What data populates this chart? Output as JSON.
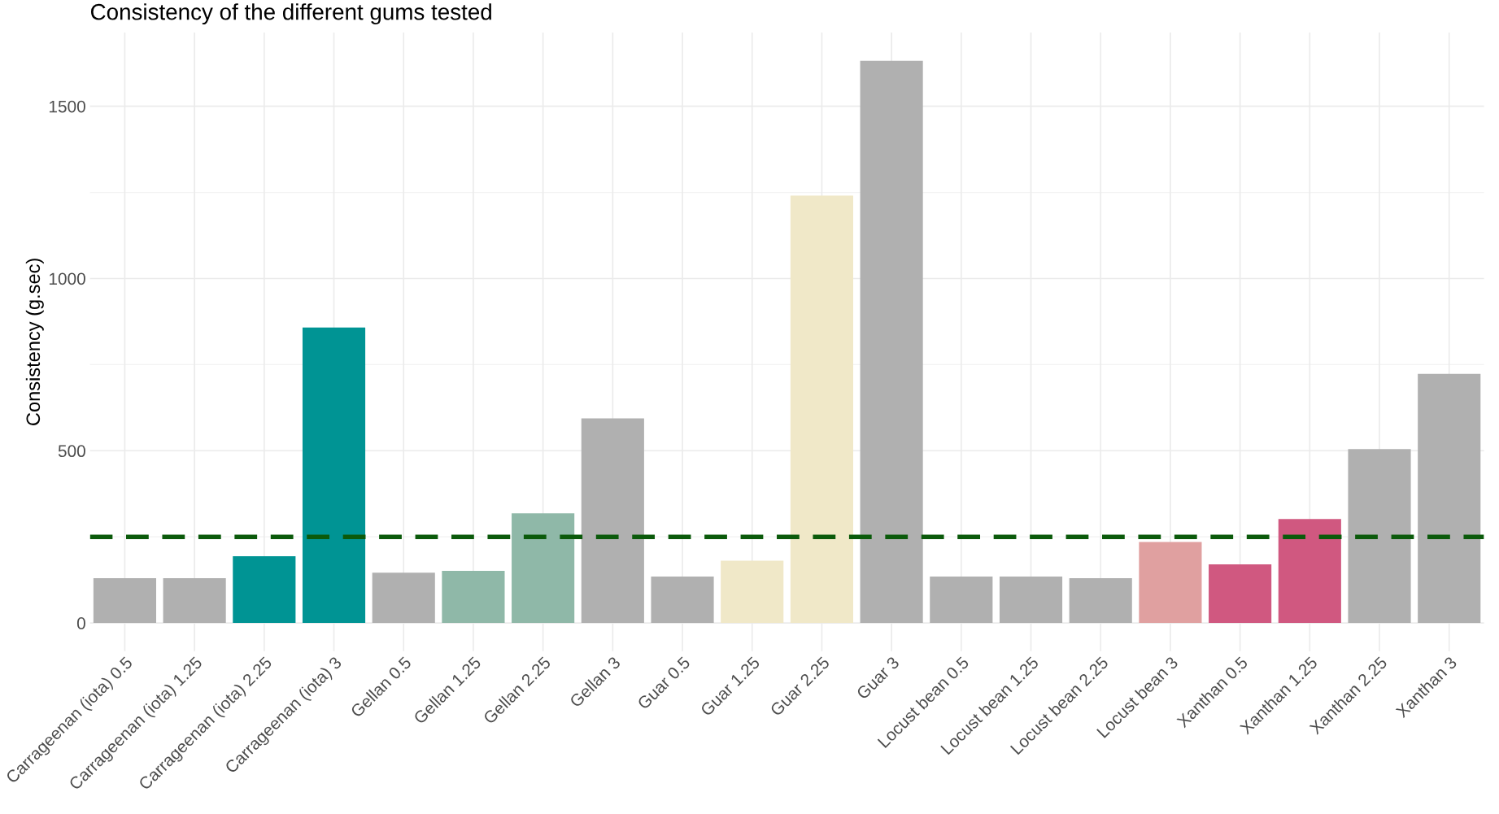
{
  "chart_data": {
    "type": "bar",
    "title": "Consistency of the different gums tested",
    "ylabel": "Consistency (g.sec)",
    "categories": [
      "Carrageenan (iota) 0.5",
      "Carrageenan (iota) 1.25",
      "Carrageenan (iota) 2.25",
      "Carrageenan (iota) 3",
      "Gellan 0.5",
      "Gellan 1.25",
      "Gellan 2.25",
      "Gellan 3",
      "Guar 0.5",
      "Guar 1.25",
      "Guar 2.25",
      "Guar 3",
      "Locust bean 0.5",
      "Locust bean 1.25",
      "Locust bean 2.25",
      "Locust bean 3",
      "Xanthan 0.5",
      "Xanthan 1.25",
      "Xanthan 2.25",
      "Xanthan 3"
    ],
    "values": [
      130,
      130,
      194,
      858,
      146,
      151,
      318,
      594,
      135,
      181,
      1241,
      1632,
      135,
      135,
      130,
      235,
      170,
      302,
      505,
      723
    ],
    "colors": [
      "#b0b0b0",
      "#b0b0b0",
      "#009494",
      "#009494",
      "#b0b0b0",
      "#8fb8a8",
      "#8fb8a8",
      "#b0b0b0",
      "#b0b0b0",
      "#f0e8c8",
      "#f0e8c8",
      "#b0b0b0",
      "#b0b0b0",
      "#b0b0b0",
      "#b0b0b0",
      "#e0a0a0",
      "#d05880",
      "#d05880",
      "#b0b0b0",
      "#b0b0b0"
    ],
    "ylim": [
      -82,
      1714
    ],
    "yticks": [
      0,
      500,
      1000,
      1500
    ],
    "grid": true,
    "ref_lines": [
      {
        "axis": "y",
        "value": 250,
        "color": "#0b5a0b",
        "line_style": "dashed"
      }
    ]
  }
}
